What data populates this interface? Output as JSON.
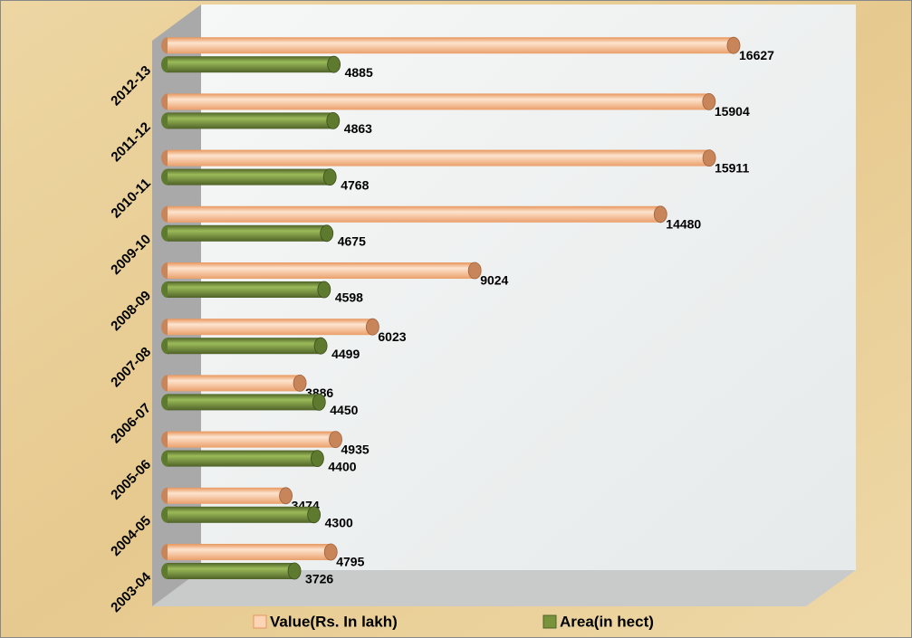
{
  "chart_data": {
    "type": "bar",
    "orientation": "horizontal",
    "categories": [
      "2003-04",
      "2004-05",
      "2005-06",
      "2006-07",
      "2007-08",
      "2008-09",
      "2009-10",
      "2010-11",
      "2011-12",
      "2012-13"
    ],
    "series": [
      {
        "name": "Value(Rs. In lakh)",
        "color": "#f4b183",
        "values": [
          4795,
          3474,
          4935,
          3886,
          6023,
          9024,
          14480,
          15911,
          15904,
          16627
        ]
      },
      {
        "name": "Area(in hect)",
        "color": "#77933c",
        "values": [
          3726,
          4300,
          4400,
          4450,
          4499,
          4598,
          4675,
          4768,
          4863,
          4885
        ]
      }
    ],
    "legend": "bottom"
  }
}
